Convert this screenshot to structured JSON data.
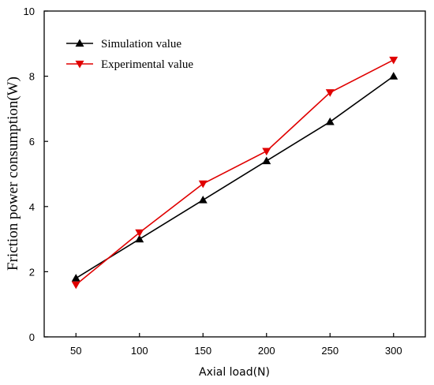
{
  "chart_data": {
    "type": "line",
    "xlabel": "Axial load(N)",
    "ylabel": "Friction power consumption(W)",
    "x": [
      50,
      100,
      150,
      200,
      250,
      300
    ],
    "x_ticks": [
      "50",
      "100",
      "150",
      "200",
      "250",
      "300"
    ],
    "xlim": [
      25,
      325
    ],
    "ylim": [
      0,
      10
    ],
    "y_ticks": [
      "0",
      "2",
      "4",
      "6",
      "8",
      "10"
    ],
    "grid": false,
    "legend_position": "top-left",
    "series": [
      {
        "name": "Simulation value",
        "values": [
          1.8,
          3.0,
          4.2,
          5.4,
          6.6,
          8.0
        ],
        "color": "#000000",
        "marker": "triangle-up"
      },
      {
        "name": "Experimental value",
        "values": [
          1.6,
          3.2,
          4.7,
          5.7,
          7.5,
          8.5
        ],
        "color": "#e00000",
        "marker": "triangle-down"
      }
    ]
  }
}
